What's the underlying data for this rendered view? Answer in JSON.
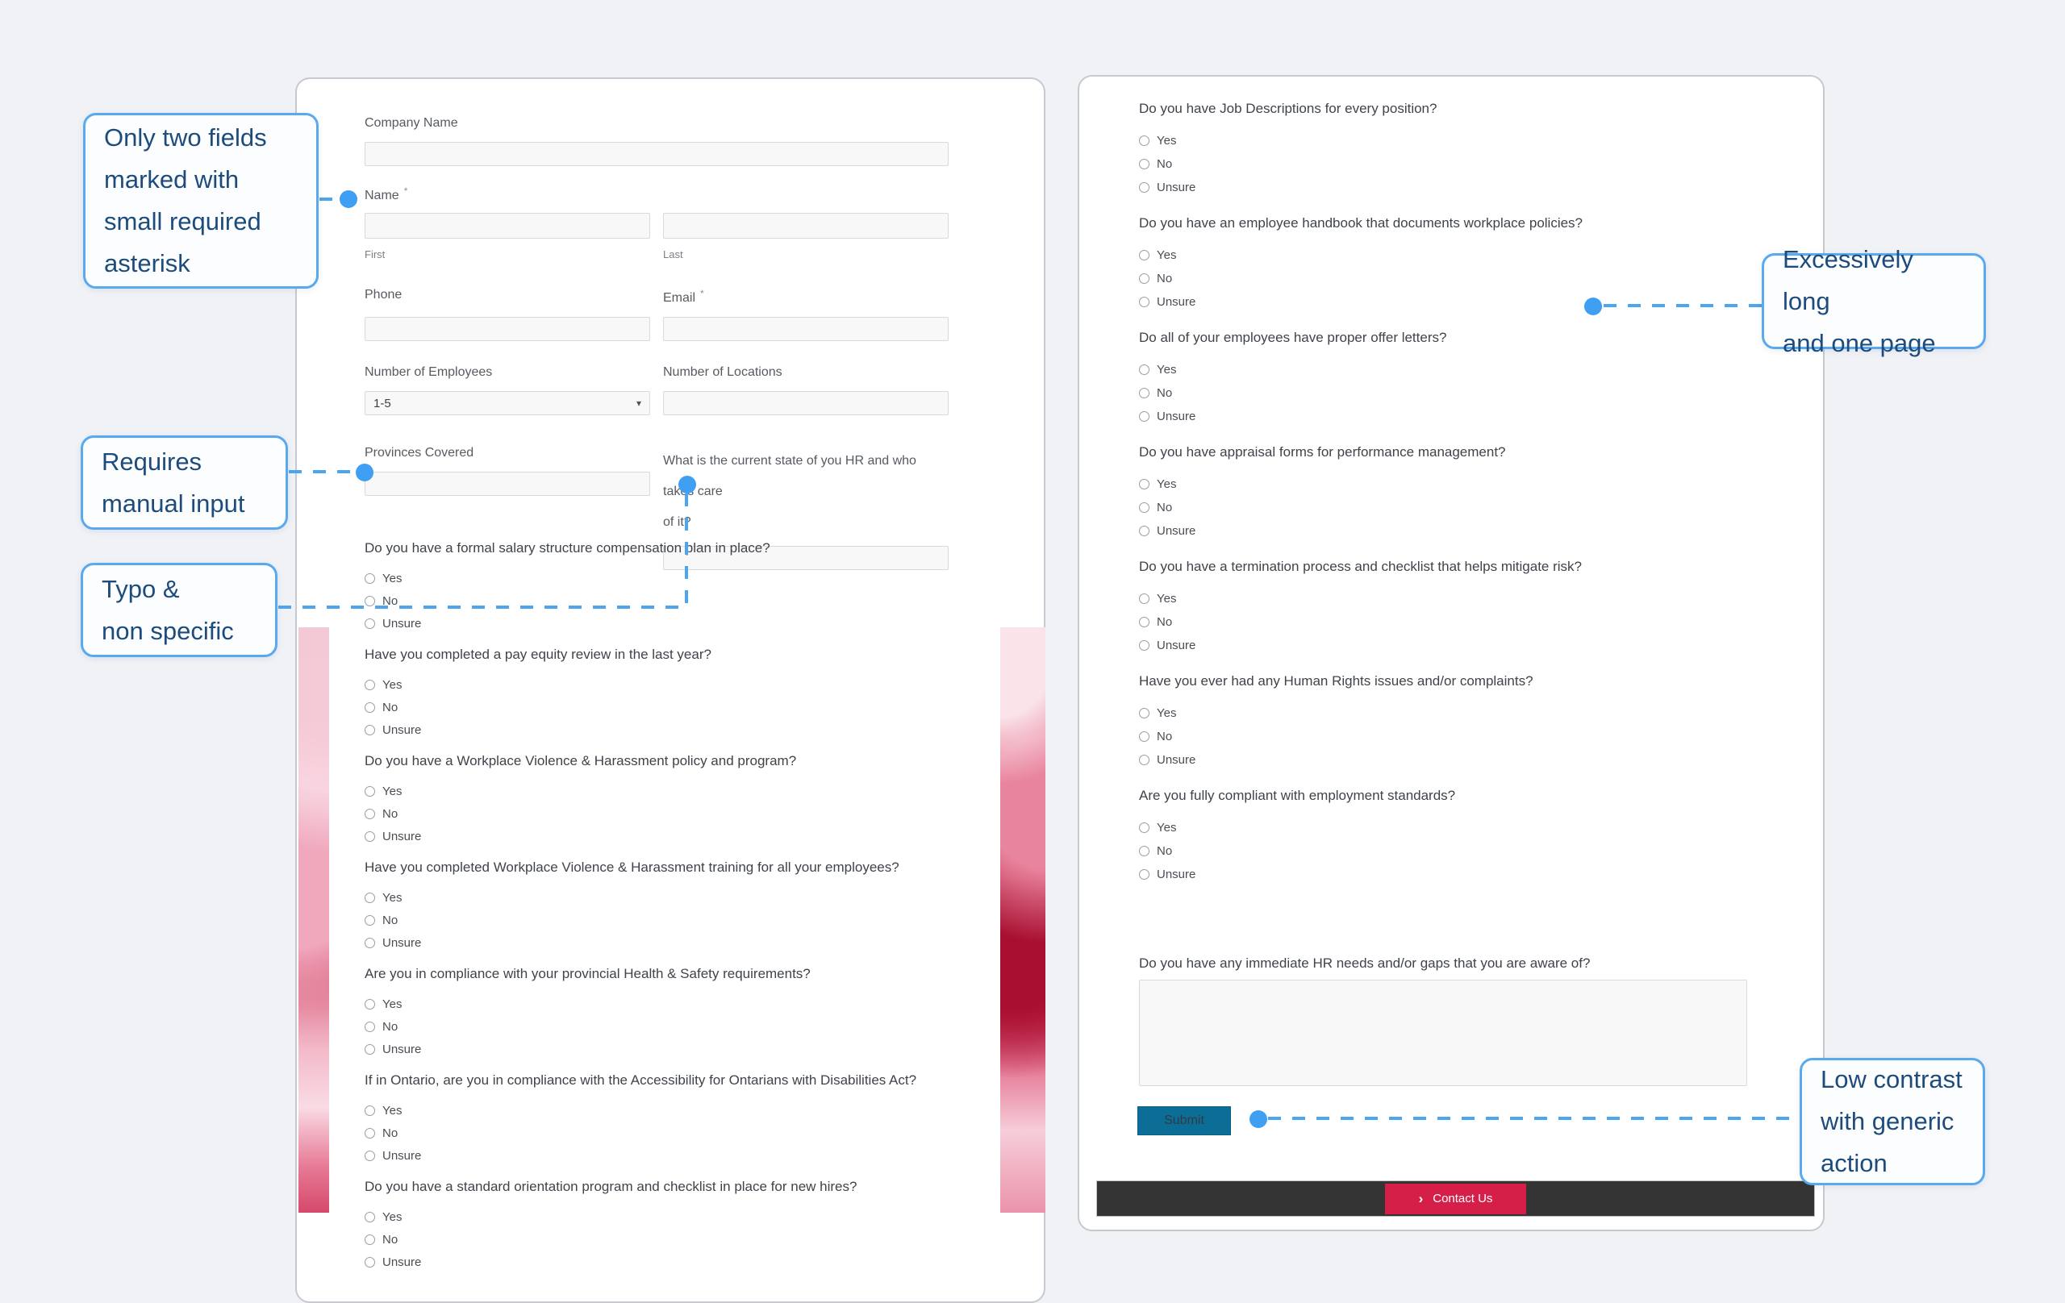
{
  "options": [
    "Yes",
    "No",
    "Unsure"
  ],
  "annotations": {
    "asterisk": "Only two fields\nmarked with\nsmall required\nasterisk",
    "manual": "Requires\nmanual input",
    "typo": "Typo &\nnon specific",
    "long": "Excessively long\nand one page",
    "contrast": "Low contrast\nwith generic\naction"
  },
  "form_left": {
    "company_label": "Company Name",
    "name_label": "Name",
    "name_required": "*",
    "first_sublabel": "First",
    "last_sublabel": "Last",
    "phone_label": "Phone",
    "email_label": "Email",
    "email_required": "*",
    "employees_label": "Number of Employees",
    "employees_value": "1-5",
    "employees_chevron": "▾",
    "locations_label": "Number of Locations",
    "provinces_label": "Provinces Covered",
    "hr_state_label": "What is the current state of you HR and who takes care\nof it?",
    "questions": [
      "Do you have a formal salary structure compensation plan in place?",
      "Have you completed a pay equity review in the last year?",
      "Do you have a Workplace Violence & Harassment policy and program?",
      "Have you completed Workplace Violence & Harassment training for all your employees?",
      "Are you in compliance with your provincial Health & Safety requirements?",
      "If in Ontario, are you in compliance with the Accessibility for Ontarians with Disabilities Act?",
      "Do you have a standard orientation program and checklist in place for new hires?"
    ]
  },
  "form_right": {
    "questions": [
      "Do you have Job Descriptions for every position?",
      "Do you have an employee handbook that documents workplace policies?",
      "Do all of your employees have proper offer letters?",
      "Do you have appraisal forms for performance management?",
      "Do you have a termination process and checklist that helps mitigate risk?",
      "Have you ever had any Human Rights issues and/or complaints?",
      "Are you fully compliant with employment standards?"
    ],
    "textarea_question": "Do you have any immediate HR needs and/or gaps that you are aware of?",
    "submit_label": "Submit"
  },
  "footer": {
    "contact_label": "Contact Us",
    "contact_chevron": "›"
  },
  "colors": {
    "accent_blue": "#4da5ef",
    "callout_text": "#1d4c7c",
    "submit_teal": "#0c6d97",
    "contact_red": "#d51f49",
    "footer_dark": "#343434"
  }
}
